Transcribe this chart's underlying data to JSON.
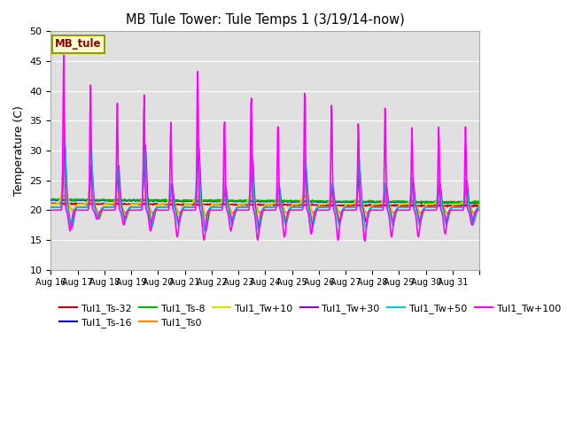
{
  "title": "MB Tule Tower: Tule Temps 1 (3/19/14-now)",
  "ylabel": "Temperature (C)",
  "ylim": [
    10,
    50
  ],
  "yticks": [
    10,
    15,
    20,
    25,
    30,
    35,
    40,
    45,
    50
  ],
  "xtick_labels": [
    "Aug 16",
    "Aug 17",
    "Aug 18",
    "Aug 19",
    "Aug 20",
    "Aug 21",
    "Aug 22",
    "Aug 23",
    "Aug 24",
    "Aug 25",
    "Aug 26",
    "Aug 27",
    "Aug 28",
    "Aug 29",
    "Aug 30",
    "Aug 31"
  ],
  "background_color": "#e0e0e0",
  "figure_color": "#ffffff",
  "grid_color": "#ffffff",
  "series": {
    "Tul1_Ts-32": {
      "color": "#cc0000",
      "lw": 1.2,
      "zorder": 3
    },
    "Tul1_Ts-16": {
      "color": "#0000cc",
      "lw": 1.2,
      "zorder": 3
    },
    "Tul1_Ts-8": {
      "color": "#00bb00",
      "lw": 1.2,
      "zorder": 3
    },
    "Tul1_Ts0": {
      "color": "#ff8800",
      "lw": 1.2,
      "zorder": 3
    },
    "Tul1_Tw+10": {
      "color": "#dddd00",
      "lw": 1.2,
      "zorder": 4
    },
    "Tul1_Tw+30": {
      "color": "#9900cc",
      "lw": 1.2,
      "zorder": 5
    },
    "Tul1_Tw+50": {
      "color": "#00cccc",
      "lw": 1.2,
      "zorder": 5
    },
    "Tul1_Tw+100": {
      "color": "#ff00ff",
      "lw": 1.2,
      "zorder": 6
    }
  },
  "legend_box": {
    "text": "MB_tule",
    "bg": "#ffffcc",
    "edge": "#999900",
    "text_color": "#880000"
  },
  "n_days": 16,
  "pts_per_day": 48,
  "magenta_peaks": [
    46.0,
    41.0,
    38.0,
    39.5,
    35.0,
    44.0,
    35.5,
    40.0,
    35.2,
    41.0,
    38.5,
    35.0,
    37.5,
    34.0,
    34.0,
    34.0
  ],
  "magenta_troughs": [
    16.5,
    18.5,
    17.5,
    16.5,
    15.5,
    15.0,
    16.5,
    15.0,
    15.5,
    16.0,
    15.0,
    14.8,
    15.5,
    15.5,
    16.0,
    17.5
  ],
  "cyan_peaks": [
    34.5,
    31.0,
    27.5,
    31.0,
    24.5,
    31.5,
    24.5,
    29.5,
    24.5,
    29.0,
    24.5,
    29.0,
    24.5,
    25.5,
    25.0,
    25.0
  ],
  "cyan_troughs": [
    17.0,
    18.5,
    18.0,
    17.0,
    17.5,
    16.5,
    17.5,
    16.5,
    17.5,
    17.0,
    17.5,
    17.0,
    17.5,
    17.5,
    17.5,
    17.5
  ],
  "purple_peaks": [
    31.0,
    27.5,
    27.5,
    31.0,
    24.5,
    30.5,
    24.0,
    29.0,
    24.0,
    27.0,
    24.0,
    27.0,
    24.0,
    25.0,
    24.5,
    25.0
  ],
  "purple_troughs": [
    17.0,
    18.5,
    18.5,
    17.5,
    18.0,
    16.5,
    18.0,
    17.0,
    18.0,
    17.5,
    18.0,
    18.0,
    18.0,
    18.0,
    18.0,
    18.0
  ],
  "yellow_peaks": [
    24.5,
    22.5,
    22.5,
    22.5,
    22.5,
    24.5,
    22.5,
    23.5,
    22.0,
    23.5,
    22.0,
    22.5,
    22.0,
    22.0,
    22.0,
    22.0
  ],
  "yellow_troughs": [
    19.5,
    18.5,
    18.5,
    18.5,
    18.5,
    17.5,
    18.5,
    18.0,
    18.5,
    18.5,
    18.5,
    18.5,
    18.5,
    18.5,
    18.5,
    18.5
  ],
  "orange_peaks": [
    22.5,
    21.5,
    21.5,
    22.0,
    21.5,
    22.5,
    21.5,
    22.5,
    21.5,
    22.5,
    21.5,
    21.5,
    21.5,
    21.5,
    21.5,
    21.5
  ],
  "orange_troughs": [
    20.0,
    19.5,
    19.5,
    19.5,
    19.5,
    19.0,
    19.5,
    19.5,
    19.5,
    19.5,
    19.5,
    19.5,
    19.5,
    19.5,
    19.5,
    19.5
  ],
  "soil_ts32_base": 21.1,
  "soil_ts32_trend": -0.025,
  "soil_ts16_base": 21.7,
  "soil_ts16_trend": -0.028,
  "soil_ts8_base": 21.8,
  "soil_ts8_trend": -0.028,
  "soil_ts0_base": 21.9,
  "soil_ts0_trend": -0.025
}
